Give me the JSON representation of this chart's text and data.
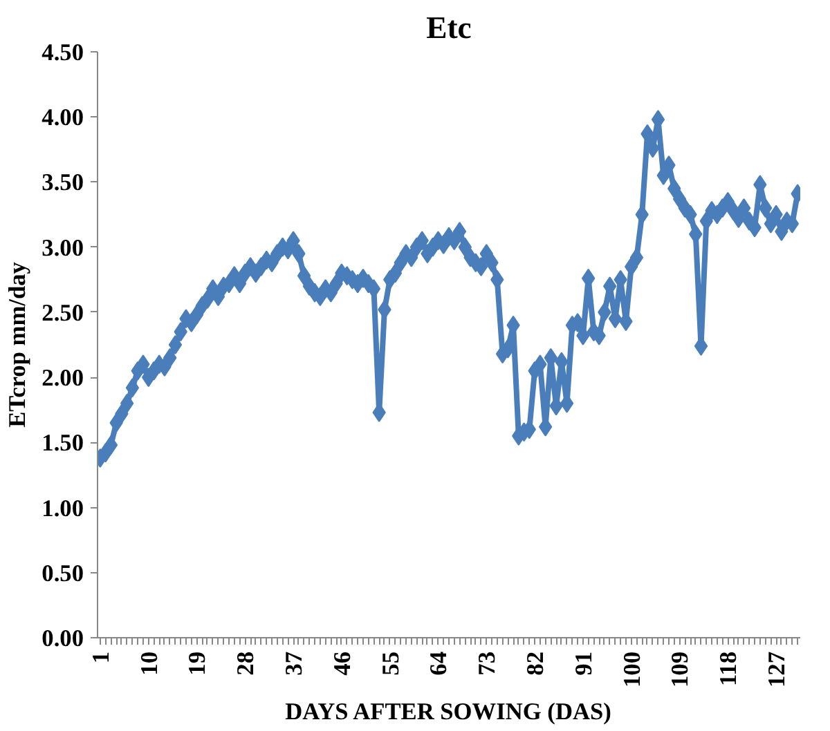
{
  "chart_data": {
    "type": "line",
    "title": "Etc",
    "xlabel": "DAYS AFTER SOWING (DAS)",
    "ylabel": "ETcrop mm/day",
    "categories": [
      "1",
      null,
      null,
      null,
      null,
      null,
      null,
      null,
      null,
      "10",
      null,
      null,
      null,
      null,
      null,
      null,
      null,
      null,
      "19",
      null,
      null,
      null,
      null,
      null,
      null,
      null,
      null,
      "28",
      null,
      null,
      null,
      null,
      null,
      null,
      null,
      null,
      "37",
      null,
      null,
      null,
      null,
      null,
      null,
      null,
      null,
      "46",
      null,
      null,
      null,
      null,
      null,
      null,
      null,
      null,
      "55",
      null,
      null,
      null,
      null,
      null,
      null,
      null,
      null,
      "64",
      null,
      null,
      null,
      null,
      null,
      null,
      null,
      null,
      "73",
      null,
      null,
      null,
      null,
      null,
      null,
      null,
      null,
      "82",
      null,
      null,
      null,
      null,
      null,
      null,
      null,
      null,
      "91",
      null,
      null,
      null,
      null,
      null,
      null,
      null,
      null,
      "100",
      null,
      null,
      null,
      null,
      null,
      null,
      null,
      null,
      "109",
      null,
      null,
      null,
      null,
      null,
      null,
      null,
      null,
      "118",
      null,
      null,
      null,
      null,
      null,
      null,
      null,
      null,
      "127",
      null,
      null,
      null,
      null
    ],
    "series": [
      {
        "color": "#4a7ebb",
        "values": [
          1.38,
          1.42,
          1.48,
          1.65,
          1.72,
          1.8,
          1.92,
          2.05,
          2.1,
          2.0,
          2.05,
          2.1,
          2.08,
          2.15,
          2.25,
          2.35,
          2.45,
          2.42,
          2.48,
          2.55,
          2.6,
          2.68,
          2.62,
          2.7,
          2.72,
          2.78,
          2.72,
          2.8,
          2.85,
          2.8,
          2.85,
          2.9,
          2.88,
          2.95,
          3.0,
          2.98,
          3.05,
          2.95,
          2.78,
          2.7,
          2.65,
          2.62,
          2.68,
          2.65,
          2.72,
          2.8,
          2.78,
          2.75,
          2.72,
          2.76,
          2.72,
          2.68,
          1.73,
          2.52,
          2.75,
          2.8,
          2.88,
          2.95,
          2.92,
          3.0,
          3.05,
          2.95,
          3.0,
          3.05,
          3.02,
          3.08,
          3.05,
          3.12,
          3.0,
          2.92,
          2.88,
          2.85,
          2.95,
          2.88,
          2.75,
          2.18,
          2.22,
          2.4,
          1.55,
          1.58,
          1.6,
          2.05,
          2.1,
          1.62,
          2.15,
          1.78,
          2.12,
          1.8,
          2.4,
          2.42,
          2.32,
          2.76,
          2.35,
          2.32,
          2.5,
          2.7,
          2.45,
          2.75,
          2.43,
          2.85,
          2.92,
          3.25,
          3.87,
          3.76,
          3.98,
          3.55,
          3.63,
          3.45,
          3.37,
          3.3,
          3.25,
          3.1,
          2.24,
          3.2,
          3.28,
          3.25,
          3.3,
          3.35,
          3.28,
          3.22,
          3.3,
          3.2,
          3.15,
          3.48,
          3.3,
          3.18,
          3.25,
          3.12,
          3.2,
          3.18,
          3.41
        ]
      }
    ],
    "ylim": [
      0,
      4.5
    ],
    "yticks": [
      {
        "value": 0,
        "label": "0.00"
      },
      {
        "value": 0.5,
        "label": "0.50"
      },
      {
        "value": 1,
        "label": "1.00"
      },
      {
        "value": 1.5,
        "label": "1.50"
      },
      {
        "value": 2,
        "label": "2.00"
      },
      {
        "value": 2.5,
        "label": "2.50"
      },
      {
        "value": 3,
        "label": "3.00"
      },
      {
        "value": 3.5,
        "label": "3.50"
      },
      {
        "value": 4,
        "label": "4.00"
      },
      {
        "value": 4.5,
        "label": "4.50"
      }
    ],
    "marker": "diamond",
    "line_style": "solid",
    "grid": false
  }
}
